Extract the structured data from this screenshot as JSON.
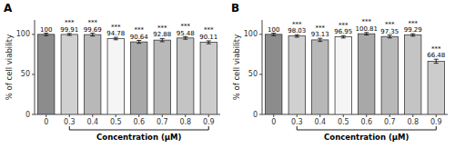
{
  "chart_data": [
    {
      "type": "bar",
      "title": "A",
      "categories": [
        "0",
        "0.3",
        "0.4",
        "0.5",
        "0.6",
        "0.7",
        "0.8",
        "0.9"
      ],
      "values": [
        100,
        99.91,
        99.69,
        94.78,
        90.64,
        92.88,
        95.48,
        90.11
      ],
      "errors": [
        1.5,
        1.2,
        1.8,
        1.5,
        1.8,
        2.0,
        1.5,
        1.8
      ],
      "significance": [
        null,
        "***",
        "***",
        "***",
        "***",
        "***",
        "***",
        "***"
      ],
      "colors": [
        "#8c8c8c",
        "#d0d0d0",
        "#b8b8b8",
        "#f5f5f5",
        "#a8a8a8",
        "#b8b8b8",
        "#c4c4c4",
        "#cccccc"
      ],
      "x_label": "Concentration (μM)",
      "y_label": "% of cell viability",
      "ylim": [
        0,
        118
      ],
      "yticks": [
        0,
        50,
        100
      ],
      "grid": false,
      "data_labels": true
    },
    {
      "type": "bar",
      "title": "B",
      "categories": [
        "0",
        "0.3",
        "0.4",
        "0.5",
        "0.6",
        "0.7",
        "0.8",
        "0.9"
      ],
      "values": [
        100,
        98.03,
        93.13,
        96.95,
        100.81,
        97.35,
        99.29,
        66.48
      ],
      "errors": [
        1.5,
        1.5,
        2.0,
        1.5,
        1.5,
        1.8,
        1.5,
        2.5
      ],
      "significance": [
        null,
        "***",
        "***",
        "***",
        "***",
        "***",
        "***",
        "***"
      ],
      "colors": [
        "#8c8c8c",
        "#d0d0d0",
        "#b8b8b8",
        "#f5f5f5",
        "#a8a8a8",
        "#b8b8b8",
        "#c4c4c4",
        "#cccccc"
      ],
      "x_label": "Concentration (μM)",
      "y_label": "% of cell viability",
      "ylim": [
        0,
        118
      ],
      "yticks": [
        0,
        50,
        100
      ],
      "grid": false,
      "data_labels": true
    }
  ]
}
